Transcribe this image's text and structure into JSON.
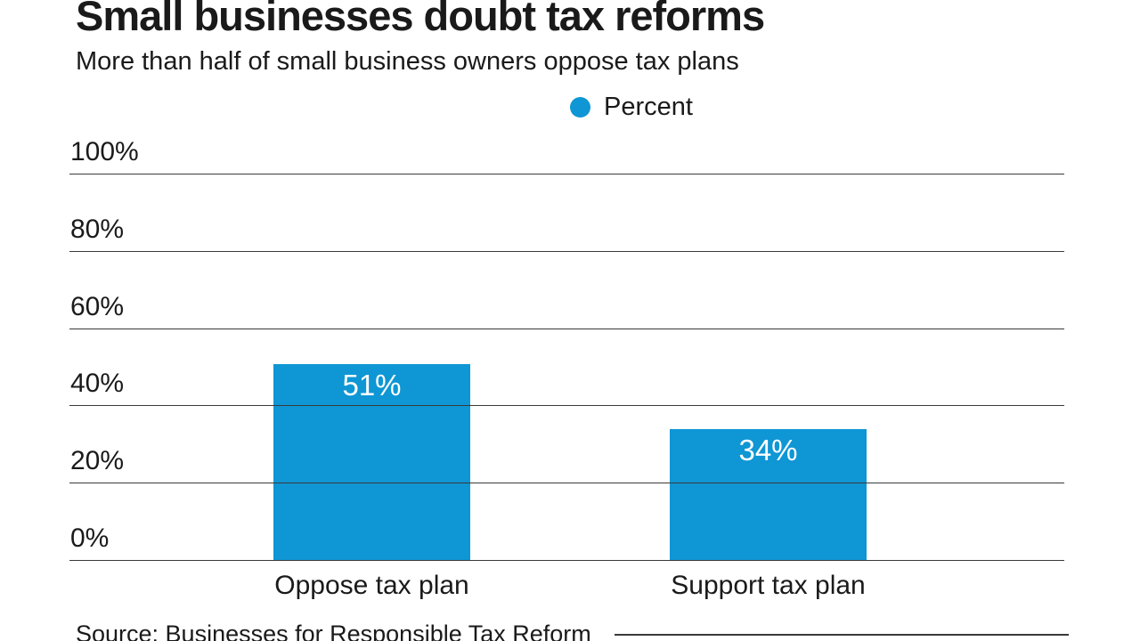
{
  "title": "Small businesses doubt tax reforms",
  "subtitle": "More than half of small business owners oppose tax plans",
  "legend": {
    "label": "Percent"
  },
  "source": "Source: Businesses for Responsible Tax Reform",
  "colors": {
    "bar": "#0f96d4",
    "text": "#1a1a1a",
    "grid": "#3a3a3a"
  },
  "chart_data": {
    "type": "bar",
    "title": "Small businesses doubt tax reforms",
    "subtitle": "More than half of small business owners oppose tax plans",
    "categories": [
      "Oppose tax plan",
      "Support tax plan"
    ],
    "series": [
      {
        "name": "Percent",
        "values": [
          51,
          34
        ]
      }
    ],
    "values": [
      51,
      34
    ],
    "value_labels": [
      "51%",
      "34%"
    ],
    "xlabel": "",
    "ylabel": "",
    "ylim": [
      0,
      100
    ],
    "yticks": [
      0,
      20,
      40,
      60,
      80,
      100
    ],
    "ytick_labels": [
      "0%",
      "20%",
      "40%",
      "60%",
      "80%",
      "100%"
    ],
    "grid": "horizontal",
    "legend_position": "top-center",
    "bar_color": "#0f96d4"
  }
}
